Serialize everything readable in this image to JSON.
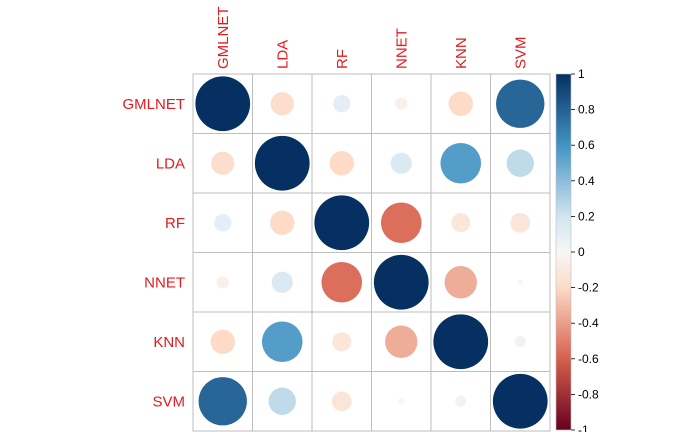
{
  "chart_data": {
    "type": "heatmap",
    "variables": [
      "GMLNET",
      "LDA",
      "RF",
      "NNET",
      "KNN",
      "SVM"
    ],
    "matrix": [
      [
        1.0,
        -0.18,
        0.1,
        -0.05,
        -0.2,
        0.78
      ],
      [
        -0.18,
        1.0,
        -0.2,
        0.15,
        0.55,
        0.25
      ],
      [
        0.1,
        -0.2,
        1.0,
        -0.55,
        -0.12,
        -0.13
      ],
      [
        -0.05,
        0.15,
        -0.55,
        1.0,
        -0.35,
        -0.01
      ],
      [
        -0.2,
        0.55,
        -0.12,
        -0.35,
        1.0,
        0.04
      ],
      [
        0.78,
        0.25,
        -0.13,
        -0.01,
        0.04,
        1.0
      ]
    ],
    "legend": {
      "ticks": [
        "1",
        "0.8",
        "0.6",
        "0.4",
        "0.2",
        "0",
        "-0.2",
        "-0.4",
        "-0.6",
        "-0.8",
        "-1"
      ],
      "range": [
        -1,
        1
      ],
      "placement": "right"
    },
    "label_color": "#e41a1c",
    "colors": {
      "strong_negative": "#67001f",
      "negative": "#d6604d",
      "light_negative": "#fddbc7",
      "neutral": "#f7f7f7",
      "light_positive": "#d1e5f0",
      "positive": "#4393c3",
      "strong_positive": "#053061",
      "grid": "#bebebe"
    }
  }
}
